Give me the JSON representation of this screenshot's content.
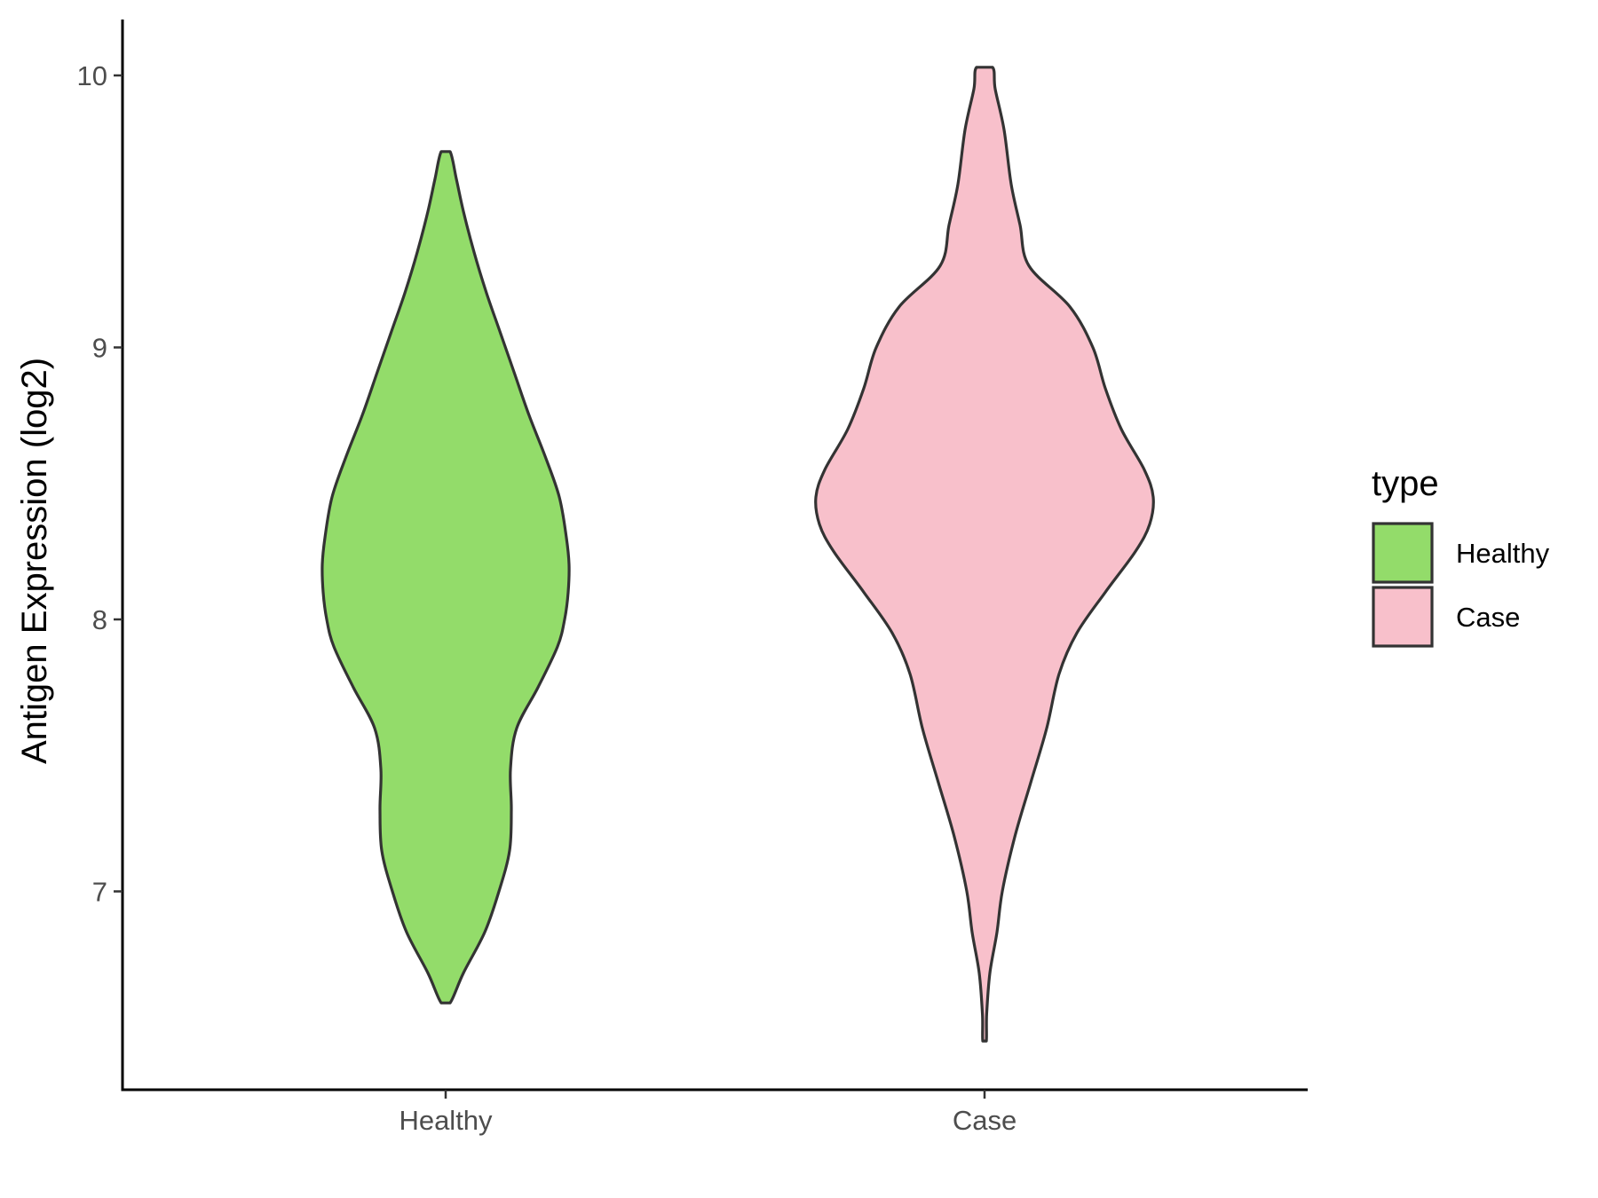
{
  "chart_data": {
    "type": "violin",
    "title": "",
    "xlabel": "",
    "ylabel": "Antigen Expression (log2)",
    "ylim": [
      6.3,
      10.2
    ],
    "yticks": [
      7,
      8,
      9,
      10
    ],
    "categories": [
      "Healthy",
      "Case"
    ],
    "legend": {
      "title": "type",
      "position": "right"
    },
    "grid": false,
    "series": [
      {
        "name": "Healthy",
        "color": "#93dc6a",
        "min": 6.59,
        "max": 9.72,
        "density": [
          [
            6.59,
            0.025
          ],
          [
            6.7,
            0.1
          ],
          [
            6.85,
            0.22
          ],
          [
            7.0,
            0.3
          ],
          [
            7.15,
            0.36
          ],
          [
            7.3,
            0.37
          ],
          [
            7.45,
            0.365
          ],
          [
            7.6,
            0.4
          ],
          [
            7.75,
            0.52
          ],
          [
            7.9,
            0.63
          ],
          [
            8.0,
            0.67
          ],
          [
            8.1,
            0.69
          ],
          [
            8.2,
            0.695
          ],
          [
            8.3,
            0.68
          ],
          [
            8.45,
            0.64
          ],
          [
            8.6,
            0.56
          ],
          [
            8.75,
            0.47
          ],
          [
            8.9,
            0.39
          ],
          [
            9.05,
            0.31
          ],
          [
            9.2,
            0.23
          ],
          [
            9.35,
            0.16
          ],
          [
            9.5,
            0.1
          ],
          [
            9.62,
            0.06
          ],
          [
            9.72,
            0.025
          ]
        ]
      },
      {
        "name": "Case",
        "color": "#f8c0cb",
        "min": 6.45,
        "max": 10.03,
        "density": [
          [
            6.45,
            0.01
          ],
          [
            6.55,
            0.012
          ],
          [
            6.7,
            0.03
          ],
          [
            6.85,
            0.07
          ],
          [
            7.0,
            0.1
          ],
          [
            7.2,
            0.17
          ],
          [
            7.4,
            0.26
          ],
          [
            7.6,
            0.35
          ],
          [
            7.8,
            0.42
          ],
          [
            7.95,
            0.52
          ],
          [
            8.1,
            0.68
          ],
          [
            8.25,
            0.85
          ],
          [
            8.35,
            0.93
          ],
          [
            8.45,
            0.95
          ],
          [
            8.55,
            0.9
          ],
          [
            8.7,
            0.77
          ],
          [
            8.85,
            0.68
          ],
          [
            9.0,
            0.61
          ],
          [
            9.15,
            0.48
          ],
          [
            9.3,
            0.25
          ],
          [
            9.45,
            0.2
          ],
          [
            9.6,
            0.15
          ],
          [
            9.8,
            0.11
          ],
          [
            9.95,
            0.06
          ],
          [
            10.03,
            0.045
          ]
        ]
      }
    ]
  }
}
